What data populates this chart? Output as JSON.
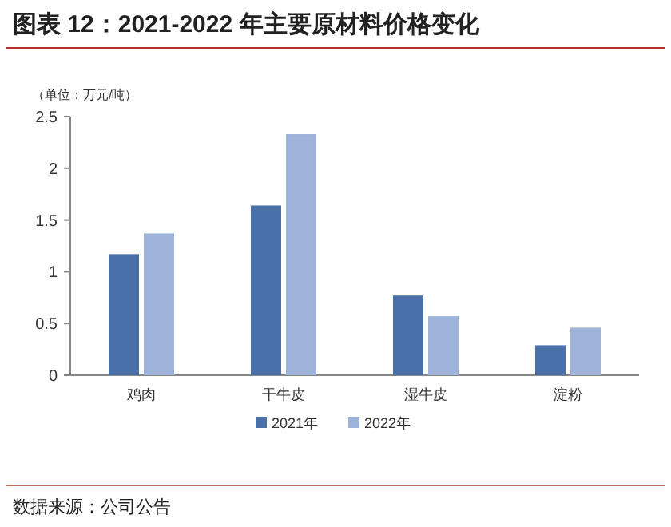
{
  "chart_data": {
    "type": "bar",
    "title": "图表 12：2021-2022 年主要原材料价格变化",
    "ylabel": "（单位：万元/吨）",
    "categories": [
      "鸡肉",
      "干牛皮",
      "湿牛皮",
      "淀粉"
    ],
    "series": [
      {
        "name": "2021年",
        "color": "#4a70aa",
        "values": [
          1.17,
          1.64,
          0.77,
          0.29
        ]
      },
      {
        "name": "2022年",
        "color": "#9db3d9",
        "values": [
          1.37,
          2.33,
          0.57,
          0.46
        ]
      }
    ],
    "ylim": [
      0,
      2.5
    ],
    "yticks": [
      0,
      0.5,
      1,
      1.5,
      2,
      2.5
    ],
    "grid": false,
    "legend": "bottom",
    "annotations": [
      "数据来源：公司公告"
    ]
  }
}
